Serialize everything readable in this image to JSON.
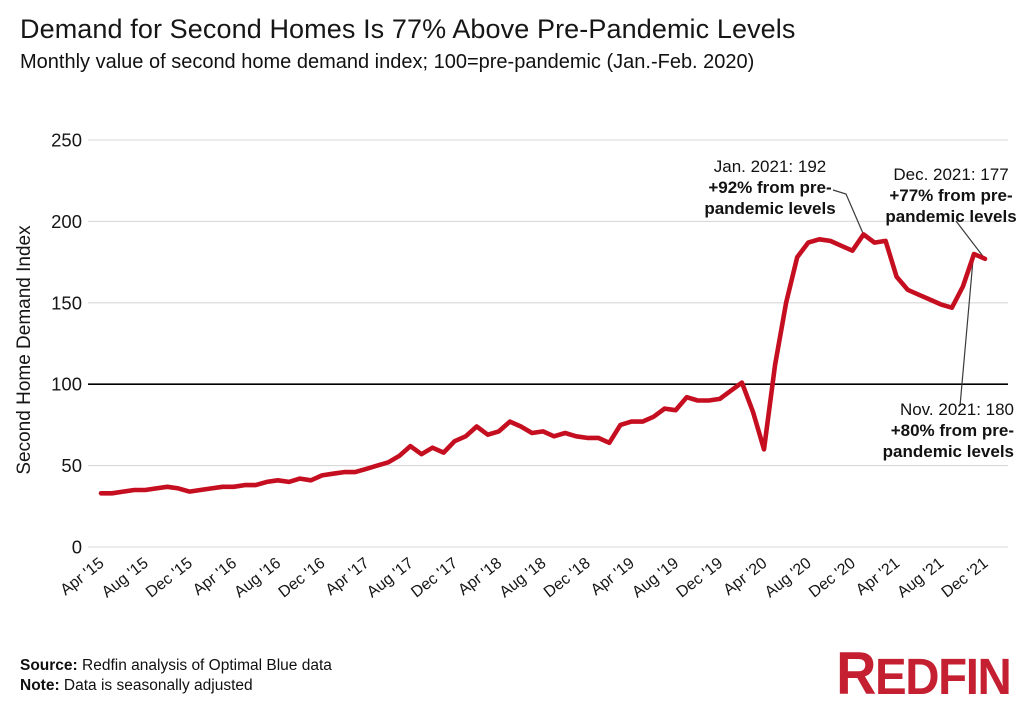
{
  "header": {
    "title": "Demand for Second Homes Is 77% Above Pre-Pandemic Levels",
    "subtitle": "Monthly value of second home demand index; 100=pre-pandemic (Jan.-Feb. 2020)"
  },
  "chart_data": {
    "type": "line",
    "title": "Demand for Second Homes Is 77% Above Pre-Pandemic Levels",
    "xlabel": "",
    "ylabel": "Second Home Demand Index",
    "ylim": [
      0,
      250
    ],
    "yticks": [
      0,
      50,
      100,
      150,
      200,
      250
    ],
    "baseline_value": 100,
    "grid": "horizontal",
    "x_start_month": "Apr 2015",
    "x_end_month": "Dec 2021",
    "x_tick_labels": [
      "Apr '15",
      "Aug '15",
      "Dec '15",
      "Apr '16",
      "Aug '16",
      "Dec '16",
      "Apr '17",
      "Aug '17",
      "Dec '17",
      "Apr '18",
      "Aug '18",
      "Dec '18",
      "Apr '19",
      "Aug '19",
      "Dec '19",
      "Apr '20",
      "Aug '20",
      "Dec '20",
      "Apr '21",
      "Aug '21",
      "Dec '21"
    ],
    "series": [
      {
        "name": "Second home demand index",
        "color": "#c50f20",
        "values": [
          33,
          33,
          34,
          35,
          35,
          36,
          37,
          36,
          34,
          35,
          36,
          37,
          37,
          38,
          38,
          40,
          41,
          40,
          42,
          41,
          44,
          45,
          46,
          46,
          48,
          50,
          52,
          56,
          62,
          57,
          61,
          58,
          65,
          68,
          74,
          69,
          71,
          77,
          74,
          70,
          71,
          68,
          70,
          68,
          67,
          67,
          64,
          75,
          77,
          77,
          80,
          85,
          84,
          92,
          90,
          90,
          91,
          96,
          101,
          83,
          60,
          112,
          150,
          178,
          187,
          189,
          188,
          185,
          182,
          192,
          187,
          188,
          166,
          158,
          155,
          152,
          149,
          147,
          160,
          180,
          177
        ]
      }
    ],
    "annotations": [
      {
        "id": "jan",
        "line1": "Jan. 2021: 192",
        "line2": "+92% from pre-",
        "line3": "pandemic levels",
        "month_index": 69,
        "value": 192
      },
      {
        "id": "dec",
        "line1": "Dec. 2021: 177",
        "line2": "+77% from pre-",
        "line3": "pandemic levels",
        "month_index": 80,
        "value": 177
      },
      {
        "id": "nov",
        "line1": "Nov. 2021: 180",
        "line2": "+80% from pre-",
        "line3": "pandemic levels",
        "month_index": 79,
        "value": 180
      }
    ]
  },
  "footer": {
    "source_label": "Source:",
    "source_text": " Redfin analysis of Optimal Blue data",
    "note_label": "Note:",
    "note_text": " Data is seasonally adjusted",
    "logo_first": "R",
    "logo_rest": "EDFIN",
    "logo_color": "#c42031"
  }
}
